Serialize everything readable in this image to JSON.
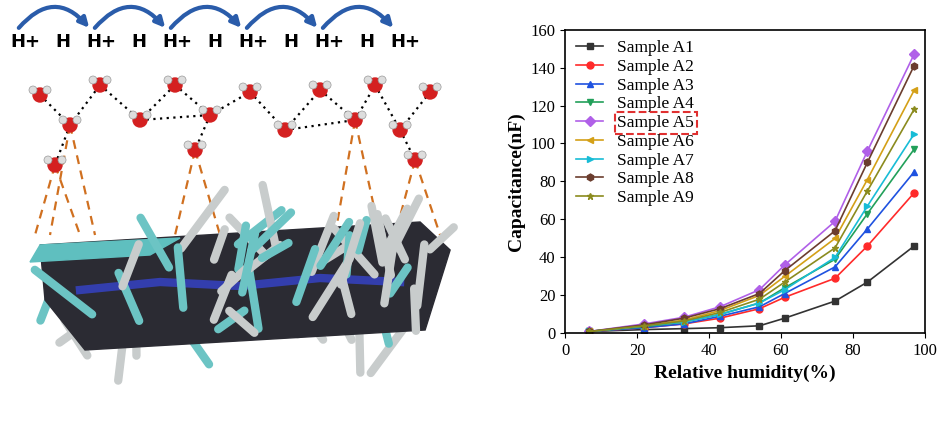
{
  "diagram": {
    "ion_labels": [
      "H+",
      "H",
      "H+",
      "H",
      "H+",
      "H",
      "H+",
      "H",
      "H+",
      "H",
      "H+"
    ]
  },
  "chart_data": {
    "type": "line",
    "x_label": "Relative humidity(%)",
    "y_label": "Capacitance(nF)",
    "x": [
      6.7,
      22,
      33,
      43,
      54,
      61,
      75,
      84,
      97
    ],
    "xlim": [
      0,
      100
    ],
    "xticks": [
      0,
      20,
      40,
      60,
      80,
      100
    ],
    "ylim": [
      0,
      160
    ],
    "yticks": [
      0,
      20,
      40,
      60,
      80,
      100,
      120,
      140,
      160
    ],
    "legend": "upper left",
    "series": [
      {
        "name": "Sample A1",
        "color": "#333333",
        "marker": "square",
        "values": [
          1,
          2,
          2.5,
          3,
          4,
          8,
          17,
          27,
          46
        ]
      },
      {
        "name": "Sample A2",
        "color": "#ff2a2a",
        "marker": "circle",
        "values": [
          1,
          3,
          5,
          8,
          13,
          19,
          29,
          46,
          74
        ]
      },
      {
        "name": "Sample A3",
        "color": "#1f52e0",
        "marker": "triangle_up",
        "values": [
          1,
          3,
          5,
          9,
          14,
          21,
          35,
          55,
          85
        ]
      },
      {
        "name": "Sample A4",
        "color": "#22a05a",
        "marker": "triangle_down",
        "values": [
          1,
          3.5,
          6,
          10,
          16,
          24,
          39,
          63,
          97
        ]
      },
      {
        "name": "Sample A5",
        "color": "#b060e8",
        "marker": "diamond",
        "values": [
          1,
          5,
          8.5,
          14,
          23,
          36,
          59,
          96,
          147
        ]
      },
      {
        "name": "Sample A6",
        "color": "#d4a017",
        "marker": "triangle_left",
        "values": [
          1,
          4,
          7,
          12,
          20,
          30,
          50,
          81,
          128
        ]
      },
      {
        "name": "Sample A7",
        "color": "#18bcd6",
        "marker": "triangle_right",
        "values": [
          1,
          4,
          6,
          10,
          16,
          23,
          40,
          67,
          105
        ]
      },
      {
        "name": "Sample A8",
        "color": "#6b3d2e",
        "marker": "hexagon",
        "values": [
          1,
          4.5,
          8,
          13,
          21,
          33,
          54,
          90,
          141
        ]
      },
      {
        "name": "Sample A9",
        "color": "#8b8b1e",
        "marker": "star",
        "values": [
          1,
          4,
          6.5,
          11,
          18,
          27,
          45,
          75,
          118
        ]
      }
    ]
  }
}
